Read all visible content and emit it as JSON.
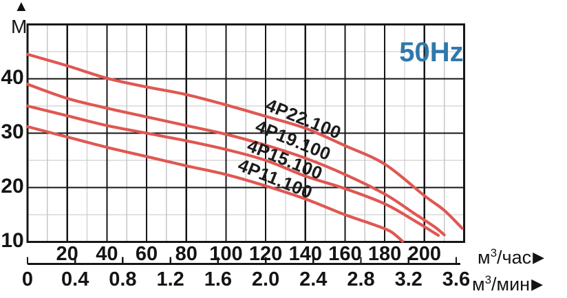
{
  "frequency_badge": "50Hz",
  "y_axis": {
    "arrow_up": "▲",
    "unit": "М",
    "tick_labels": [
      "40",
      "30",
      "20",
      "10"
    ]
  },
  "x_axis_hour": {
    "tick_labels": [
      "20",
      "40",
      "60",
      "80",
      "100",
      "120",
      "140",
      "160",
      "180",
      "200"
    ],
    "unit_base": "м",
    "unit_sup": "3",
    "unit_rest": "/час",
    "arrow": "▶"
  },
  "x_axis_min": {
    "tick_labels": [
      "0",
      "0.4",
      "0.8",
      "1.2",
      "1.6",
      "2.0",
      "2.4",
      "2.8",
      "3.2",
      "3.6"
    ],
    "unit_base": "м",
    "unit_sup": "3",
    "unit_rest": "/мин",
    "arrow": "▶"
  },
  "colors": {
    "curve_red": "#e05752",
    "accent_blue": "#2f79ab",
    "grid_major": "#161616",
    "grid_minor": "#c6c6c6",
    "text": "#141414"
  },
  "chart_data": {
    "type": "line",
    "title": "",
    "annotation": "50Hz",
    "xlabel_hour": "м³/час",
    "xlabel_min": "м³/мин",
    "ylabel": "М",
    "xlim": [
      0,
      220
    ],
    "ylim": [
      10,
      50
    ],
    "x_major_step": 20,
    "x_minor_step": 10,
    "y_major_step": 10,
    "y_minor_step": 5,
    "x_min_axis": {
      "min": 0,
      "max": 3.6,
      "step": 0.4,
      "hour_per_min": 60
    },
    "grid": true,
    "legend_position": "inline-rotated-labels",
    "series": [
      {
        "name": "4P22.100",
        "points": [
          [
            0,
            44.5
          ],
          [
            20,
            42.4
          ],
          [
            40,
            40.1
          ],
          [
            60,
            38.5
          ],
          [
            80,
            37.1
          ],
          [
            100,
            35.2
          ],
          [
            120,
            33.1
          ],
          [
            140,
            30.9
          ],
          [
            160,
            27.7
          ],
          [
            180,
            24.3
          ],
          [
            200,
            18.5
          ],
          [
            210,
            15.8
          ],
          [
            219,
            12.5
          ]
        ]
      },
      {
        "name": "4P19.100",
        "points": [
          [
            0,
            39.0
          ],
          [
            20,
            36.4
          ],
          [
            40,
            34.6
          ],
          [
            60,
            33.0
          ],
          [
            80,
            31.4
          ],
          [
            100,
            29.8
          ],
          [
            120,
            27.8
          ],
          [
            140,
            25.4
          ],
          [
            160,
            22.4
          ],
          [
            180,
            18.8
          ],
          [
            195,
            15.2
          ],
          [
            205,
            12.8
          ],
          [
            210,
            11.3
          ]
        ]
      },
      {
        "name": "4P15.100",
        "points": [
          [
            0,
            35.0
          ],
          [
            20,
            33.2
          ],
          [
            40,
            31.4
          ],
          [
            60,
            30.0
          ],
          [
            80,
            28.6
          ],
          [
            100,
            27.0
          ],
          [
            120,
            25.0
          ],
          [
            140,
            22.1
          ],
          [
            160,
            19.8
          ],
          [
            180,
            17.0
          ],
          [
            195,
            13.9
          ],
          [
            207,
            11.2
          ]
        ]
      },
      {
        "name": "4P11.100",
        "points": [
          [
            0,
            31.2
          ],
          [
            20,
            29.3
          ],
          [
            40,
            27.4
          ],
          [
            60,
            25.7
          ],
          [
            80,
            24.0
          ],
          [
            100,
            22.4
          ],
          [
            120,
            20.3
          ],
          [
            140,
            17.9
          ],
          [
            160,
            15.0
          ],
          [
            175,
            13.1
          ],
          [
            183,
            11.9
          ],
          [
            189,
            10.1
          ]
        ]
      }
    ]
  }
}
